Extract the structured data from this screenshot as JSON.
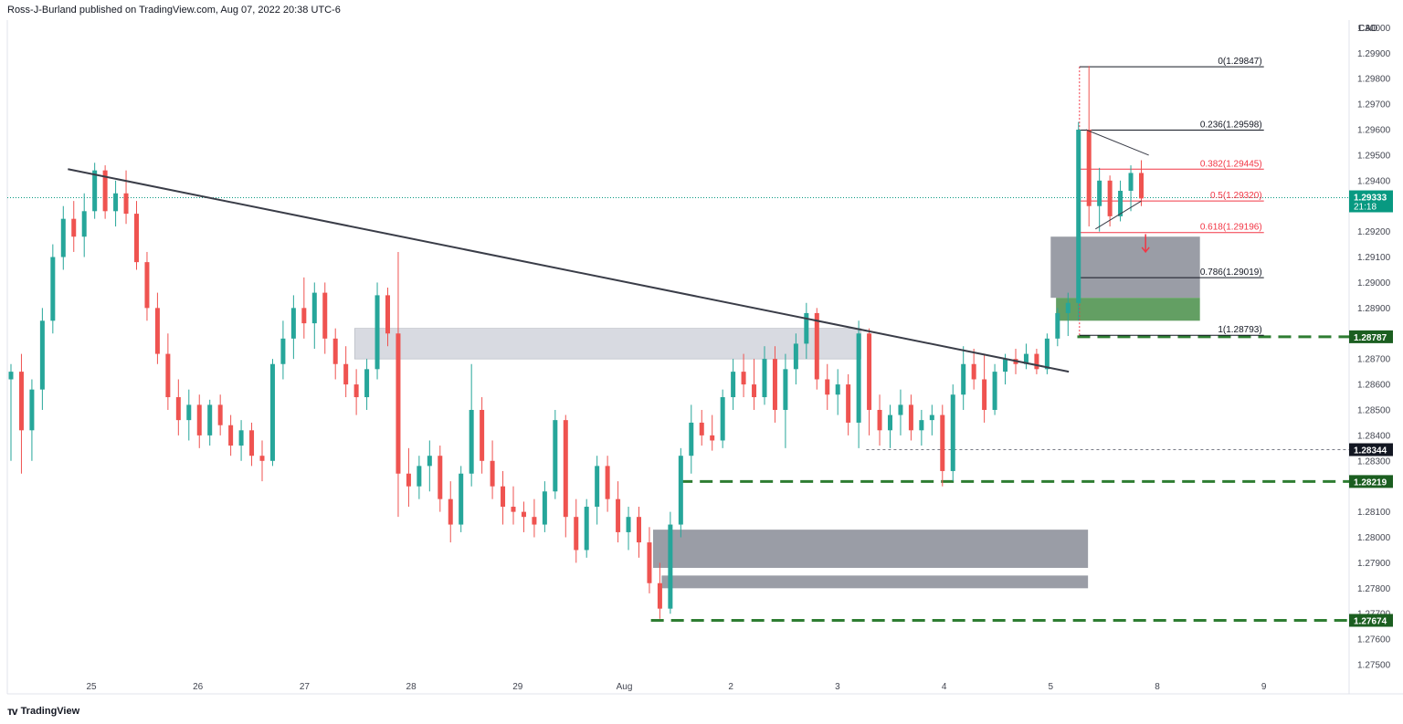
{
  "header": {
    "publisher_line": "Ross-J-Burland published on TradingView.com, Aug 07, 2022 20:38 UTC-6"
  },
  "footer": {
    "logo_text": "TradingView",
    "logo_icon": "tradingview-logo-icon"
  },
  "colors": {
    "up": "#26a69a",
    "down": "#ef5350",
    "trendline": "#3a3d48",
    "zone_light": "#d1d4dc",
    "zone_dark": "#9598a1",
    "zone_green": "#5b9a5b",
    "level_green": "#2e7d32",
    "fib_red": "#f23645",
    "fib_dark": "#131722",
    "last_price": "#089981"
  },
  "chart_data": {
    "type": "candlestick",
    "symbol_currency": "CAD",
    "y_axis": {
      "range": [
        1.2745,
        1.3003
      ],
      "ticks": [
        "1.30000",
        "1.29900",
        "1.29800",
        "1.29700",
        "1.29600",
        "1.29500",
        "1.29400",
        "1.29200",
        "1.29100",
        "1.29000",
        "1.28900",
        "1.28700",
        "1.28600",
        "1.28500",
        "1.28400",
        "1.28300",
        "1.28100",
        "1.28000",
        "1.27900",
        "1.27800",
        "1.27700",
        "1.27600",
        "1.27500"
      ]
    },
    "x_axis": {
      "labels": [
        "25",
        "26",
        "27",
        "28",
        "29",
        "Aug",
        "2",
        "3",
        "4",
        "5",
        "8",
        "9"
      ],
      "label_days": [
        1,
        2,
        3,
        4,
        5,
        6,
        7,
        8,
        9,
        10,
        11,
        12
      ],
      "day_start_range": [
        0.27,
        12
      ]
    },
    "last_price": {
      "value": "1.29333",
      "countdown": "21:18",
      "price": 1.29333
    },
    "price_labels": [
      {
        "label": "1.28787",
        "price": 1.28787,
        "style": "green"
      },
      {
        "label": "1.28344",
        "price": 1.28344,
        "style": "dark"
      },
      {
        "label": "1.28219",
        "price": 1.28219,
        "style": "green"
      },
      {
        "label": "1.27674",
        "price": 1.27674,
        "style": "green"
      }
    ],
    "fibonacci": {
      "anchor_from_day": 10.27,
      "anchor_to_day": 12.0,
      "levels": [
        {
          "label": "0(1.29847)",
          "price": 1.29847,
          "color": "dark"
        },
        {
          "label": "0.236(1.29598)",
          "price": 1.29598,
          "color": "dark"
        },
        {
          "label": "0.382(1.29445)",
          "price": 1.29445,
          "color": "red"
        },
        {
          "label": "0.5(1.29320)",
          "price": 1.2932,
          "color": "red"
        },
        {
          "label": "0.618(1.29196)",
          "price": 1.29196,
          "color": "red"
        },
        {
          "label": "0.786(1.29019)",
          "price": 1.29019,
          "color": "dark"
        },
        {
          "label": "1(1.28793)",
          "price": 1.28793,
          "color": "dark"
        }
      ]
    },
    "trendline": {
      "from": [
        0.78,
        1.29445
      ],
      "to": [
        10.17,
        1.2865
      ]
    },
    "zones": [
      {
        "from_day": 3.47,
        "to_day": 8.22,
        "top": 1.2882,
        "bottom": 1.287,
        "style": "light"
      },
      {
        "from_day": 10.0,
        "to_day": 11.4,
        "top": 1.2918,
        "bottom": 1.2894,
        "style": "dark"
      },
      {
        "from_day": 10.05,
        "to_day": 11.4,
        "top": 1.2894,
        "bottom": 1.2885,
        "style": "green"
      },
      {
        "from_day": 6.27,
        "to_day": 10.35,
        "top": 1.2803,
        "bottom": 1.2788,
        "style": "dark"
      },
      {
        "from_day": 6.35,
        "to_day": 10.35,
        "top": 1.2785,
        "bottom": 1.278,
        "style": "dark"
      }
    ],
    "horizontal_levels": [
      {
        "price": 1.28787,
        "from_day": 10.25,
        "style": "green-dashed"
      },
      {
        "price": 1.28344,
        "from_day": 8.27,
        "style": "grey-dotted"
      },
      {
        "price": 1.28219,
        "from_day": 6.52,
        "style": "green-dashed"
      },
      {
        "price": 1.27674,
        "from_day": 6.25,
        "style": "green-dashed"
      }
    ],
    "triangle": {
      "upper_from": [
        10.33,
        1.296
      ],
      "upper_to": [
        10.92,
        1.295
      ],
      "lower_from": [
        10.42,
        1.2921
      ],
      "lower_to": [
        10.85,
        1.2932
      ]
    },
    "projection_arrow": {
      "day": 10.89,
      "from": 1.2919,
      "to": 1.2912
    },
    "candles": [
      {
        "o": 1.2862,
        "h": 1.2868,
        "l": 1.283,
        "c": 1.2865
      },
      {
        "o": 1.2865,
        "h": 1.2872,
        "l": 1.2825,
        "c": 1.2842
      },
      {
        "o": 1.2842,
        "h": 1.2862,
        "l": 1.283,
        "c": 1.2858
      },
      {
        "o": 1.2858,
        "h": 1.289,
        "l": 1.285,
        "c": 1.2885
      },
      {
        "o": 1.2885,
        "h": 1.2915,
        "l": 1.288,
        "c": 1.291
      },
      {
        "o": 1.291,
        "h": 1.293,
        "l": 1.2905,
        "c": 1.2925
      },
      {
        "o": 1.2925,
        "h": 1.2932,
        "l": 1.2912,
        "c": 1.2918
      },
      {
        "o": 1.2918,
        "h": 1.2935,
        "l": 1.291,
        "c": 1.2928
      },
      {
        "o": 1.2928,
        "h": 1.2947,
        "l": 1.2925,
        "c": 1.2944
      },
      {
        "o": 1.2944,
        "h": 1.2946,
        "l": 1.2925,
        "c": 1.2928
      },
      {
        "o": 1.2928,
        "h": 1.294,
        "l": 1.2922,
        "c": 1.2935
      },
      {
        "o": 1.2935,
        "h": 1.2944,
        "l": 1.2923,
        "c": 1.2927
      },
      {
        "o": 1.2927,
        "h": 1.2932,
        "l": 1.2905,
        "c": 1.2908
      },
      {
        "o": 1.2908,
        "h": 1.2912,
        "l": 1.2885,
        "c": 1.289
      },
      {
        "o": 1.289,
        "h": 1.2896,
        "l": 1.2868,
        "c": 1.2872
      },
      {
        "o": 1.2872,
        "h": 1.288,
        "l": 1.285,
        "c": 1.2855
      },
      {
        "o": 1.2855,
        "h": 1.2862,
        "l": 1.284,
        "c": 1.2846
      },
      {
        "o": 1.2846,
        "h": 1.2858,
        "l": 1.2838,
        "c": 1.2852
      },
      {
        "o": 1.2852,
        "h": 1.2856,
        "l": 1.2835,
        "c": 1.284
      },
      {
        "o": 1.284,
        "h": 1.2854,
        "l": 1.2836,
        "c": 1.2852
      },
      {
        "o": 1.2852,
        "h": 1.2856,
        "l": 1.284,
        "c": 1.2844
      },
      {
        "o": 1.2844,
        "h": 1.2848,
        "l": 1.2832,
        "c": 1.2836
      },
      {
        "o": 1.2836,
        "h": 1.2846,
        "l": 1.283,
        "c": 1.2842
      },
      {
        "o": 1.2842,
        "h": 1.2845,
        "l": 1.2828,
        "c": 1.2832
      },
      {
        "o": 1.2832,
        "h": 1.2838,
        "l": 1.2822,
        "c": 1.283
      },
      {
        "o": 1.283,
        "h": 1.287,
        "l": 1.2828,
        "c": 1.2868
      },
      {
        "o": 1.2868,
        "h": 1.2885,
        "l": 1.2862,
        "c": 1.2878
      },
      {
        "o": 1.2878,
        "h": 1.2895,
        "l": 1.287,
        "c": 1.289
      },
      {
        "o": 1.289,
        "h": 1.2902,
        "l": 1.2878,
        "c": 1.2884
      },
      {
        "o": 1.2884,
        "h": 1.29,
        "l": 1.2874,
        "c": 1.2896
      },
      {
        "o": 1.2896,
        "h": 1.29,
        "l": 1.2872,
        "c": 1.2878
      },
      {
        "o": 1.2878,
        "h": 1.2882,
        "l": 1.2862,
        "c": 1.2868
      },
      {
        "o": 1.2868,
        "h": 1.2875,
        "l": 1.2855,
        "c": 1.286
      },
      {
        "o": 1.286,
        "h": 1.2866,
        "l": 1.2848,
        "c": 1.2855
      },
      {
        "o": 1.2855,
        "h": 1.287,
        "l": 1.285,
        "c": 1.2866
      },
      {
        "o": 1.2866,
        "h": 1.29,
        "l": 1.2862,
        "c": 1.2895
      },
      {
        "o": 1.2895,
        "h": 1.2898,
        "l": 1.2875,
        "c": 1.288
      },
      {
        "o": 1.288,
        "h": 1.2912,
        "l": 1.2808,
        "c": 1.2825
      },
      {
        "o": 1.2825,
        "h": 1.2835,
        "l": 1.2812,
        "c": 1.282
      },
      {
        "o": 1.282,
        "h": 1.2832,
        "l": 1.2815,
        "c": 1.2828
      },
      {
        "o": 1.2828,
        "h": 1.2838,
        "l": 1.2818,
        "c": 1.2832
      },
      {
        "o": 1.2832,
        "h": 1.2836,
        "l": 1.281,
        "c": 1.2815
      },
      {
        "o": 1.2815,
        "h": 1.2822,
        "l": 1.2798,
        "c": 1.2805
      },
      {
        "o": 1.2805,
        "h": 1.2828,
        "l": 1.2802,
        "c": 1.2825
      },
      {
        "o": 1.2825,
        "h": 1.2868,
        "l": 1.282,
        "c": 1.285
      },
      {
        "o": 1.285,
        "h": 1.2855,
        "l": 1.2825,
        "c": 1.283
      },
      {
        "o": 1.283,
        "h": 1.2838,
        "l": 1.2815,
        "c": 1.282
      },
      {
        "o": 1.282,
        "h": 1.2826,
        "l": 1.2805,
        "c": 1.2812
      },
      {
        "o": 1.2812,
        "h": 1.282,
        "l": 1.2805,
        "c": 1.281
      },
      {
        "o": 1.281,
        "h": 1.2814,
        "l": 1.2802,
        "c": 1.2808
      },
      {
        "o": 1.2808,
        "h": 1.2815,
        "l": 1.28,
        "c": 1.2805
      },
      {
        "o": 1.2805,
        "h": 1.2822,
        "l": 1.2802,
        "c": 1.2818
      },
      {
        "o": 1.2818,
        "h": 1.285,
        "l": 1.2815,
        "c": 1.2846
      },
      {
        "o": 1.2846,
        "h": 1.2848,
        "l": 1.28,
        "c": 1.2808
      },
      {
        "o": 1.2808,
        "h": 1.2815,
        "l": 1.279,
        "c": 1.2795
      },
      {
        "o": 1.2795,
        "h": 1.2815,
        "l": 1.2792,
        "c": 1.2812
      },
      {
        "o": 1.2812,
        "h": 1.2832,
        "l": 1.2805,
        "c": 1.2828
      },
      {
        "o": 1.2828,
        "h": 1.2832,
        "l": 1.281,
        "c": 1.2815
      },
      {
        "o": 1.2815,
        "h": 1.2822,
        "l": 1.2798,
        "c": 1.2802
      },
      {
        "o": 1.2802,
        "h": 1.2812,
        "l": 1.2795,
        "c": 1.2808
      },
      {
        "o": 1.2808,
        "h": 1.2812,
        "l": 1.2792,
        "c": 1.2798
      },
      {
        "o": 1.2798,
        "h": 1.2804,
        "l": 1.2778,
        "c": 1.2782
      },
      {
        "o": 1.2782,
        "h": 1.279,
        "l": 1.2768,
        "c": 1.2772
      },
      {
        "o": 1.2772,
        "h": 1.281,
        "l": 1.277,
        "c": 1.2805
      },
      {
        "o": 1.2805,
        "h": 1.2835,
        "l": 1.28,
        "c": 1.2832
      },
      {
        "o": 1.2832,
        "h": 1.2852,
        "l": 1.2825,
        "c": 1.2845
      },
      {
        "o": 1.2845,
        "h": 1.285,
        "l": 1.2836,
        "c": 1.284
      },
      {
        "o": 1.284,
        "h": 1.2848,
        "l": 1.2834,
        "c": 1.2838
      },
      {
        "o": 1.2838,
        "h": 1.2858,
        "l": 1.2835,
        "c": 1.2855
      },
      {
        "o": 1.2855,
        "h": 1.287,
        "l": 1.285,
        "c": 1.2865
      },
      {
        "o": 1.2865,
        "h": 1.2872,
        "l": 1.2855,
        "c": 1.286
      },
      {
        "o": 1.286,
        "h": 1.287,
        "l": 1.285,
        "c": 1.2855
      },
      {
        "o": 1.2855,
        "h": 1.2875,
        "l": 1.2852,
        "c": 1.287
      },
      {
        "o": 1.287,
        "h": 1.2875,
        "l": 1.2845,
        "c": 1.285
      },
      {
        "o": 1.285,
        "h": 1.2872,
        "l": 1.2835,
        "c": 1.2866
      },
      {
        "o": 1.2866,
        "h": 1.288,
        "l": 1.286,
        "c": 1.2876
      },
      {
        "o": 1.2876,
        "h": 1.2892,
        "l": 1.287,
        "c": 1.2888
      },
      {
        "o": 1.2888,
        "h": 1.289,
        "l": 1.2858,
        "c": 1.2862
      },
      {
        "o": 1.2862,
        "h": 1.2868,
        "l": 1.285,
        "c": 1.2856
      },
      {
        "o": 1.2856,
        "h": 1.2866,
        "l": 1.2848,
        "c": 1.286
      },
      {
        "o": 1.286,
        "h": 1.2864,
        "l": 1.284,
        "c": 1.2845
      },
      {
        "o": 1.2845,
        "h": 1.2885,
        "l": 1.2835,
        "c": 1.288
      },
      {
        "o": 1.288,
        "h": 1.2882,
        "l": 1.284,
        "c": 1.285
      },
      {
        "o": 1.285,
        "h": 1.2856,
        "l": 1.2836,
        "c": 1.2842
      },
      {
        "o": 1.2842,
        "h": 1.2852,
        "l": 1.2835,
        "c": 1.2848
      },
      {
        "o": 1.2848,
        "h": 1.2858,
        "l": 1.284,
        "c": 1.2852
      },
      {
        "o": 1.2852,
        "h": 1.2856,
        "l": 1.2838,
        "c": 1.2842
      },
      {
        "o": 1.2842,
        "h": 1.285,
        "l": 1.2836,
        "c": 1.2846
      },
      {
        "o": 1.2846,
        "h": 1.2852,
        "l": 1.284,
        "c": 1.2848
      },
      {
        "o": 1.2848,
        "h": 1.2852,
        "l": 1.282,
        "c": 1.2826
      },
      {
        "o": 1.2826,
        "h": 1.286,
        "l": 1.2822,
        "c": 1.2856
      },
      {
        "o": 1.2856,
        "h": 1.2875,
        "l": 1.285,
        "c": 1.2868
      },
      {
        "o": 1.2868,
        "h": 1.2874,
        "l": 1.2858,
        "c": 1.2862
      },
      {
        "o": 1.2862,
        "h": 1.2872,
        "l": 1.2845,
        "c": 1.285
      },
      {
        "o": 1.285,
        "h": 1.2868,
        "l": 1.2848,
        "c": 1.2865
      },
      {
        "o": 1.2865,
        "h": 1.2872,
        "l": 1.286,
        "c": 1.287
      },
      {
        "o": 1.287,
        "h": 1.2874,
        "l": 1.2864,
        "c": 1.2868
      },
      {
        "o": 1.2868,
        "h": 1.2876,
        "l": 1.2866,
        "c": 1.2872
      },
      {
        "o": 1.2872,
        "h": 1.2874,
        "l": 1.2864,
        "c": 1.2866
      },
      {
        "o": 1.2866,
        "h": 1.288,
        "l": 1.2864,
        "c": 1.2878
      },
      {
        "o": 1.2878,
        "h": 1.289,
        "l": 1.2875,
        "c": 1.2888
      },
      {
        "o": 1.2888,
        "h": 1.2896,
        "l": 1.2879,
        "c": 1.2892
      },
      {
        "o": 1.2892,
        "h": 1.2963,
        "l": 1.2885,
        "c": 1.296
      },
      {
        "o": 1.296,
        "h": 1.2985,
        "l": 1.2922,
        "c": 1.293
      },
      {
        "o": 1.293,
        "h": 1.2945,
        "l": 1.292,
        "c": 1.294
      },
      {
        "o": 1.294,
        "h": 1.2942,
        "l": 1.2922,
        "c": 1.2926
      },
      {
        "o": 1.2926,
        "h": 1.294,
        "l": 1.2924,
        "c": 1.2936
      },
      {
        "o": 1.2936,
        "h": 1.2946,
        "l": 1.2928,
        "c": 1.2943
      },
      {
        "o": 1.2943,
        "h": 1.2948,
        "l": 1.293,
        "c": 1.2933
      }
    ]
  }
}
